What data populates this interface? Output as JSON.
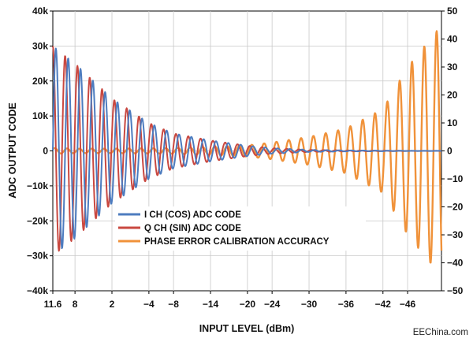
{
  "chart_data": {
    "type": "line",
    "title": "",
    "xlabel": "INPUT LEVEL (dBm)",
    "ylabel": "ADC OUTPUT CODE",
    "y2label": "",
    "x_ticks": [
      "11.6",
      "8",
      "2",
      "−4",
      "−8",
      "−14",
      "−20",
      "−24",
      "−30",
      "−36",
      "−42",
      "−46"
    ],
    "x_tick_values": [
      11.6,
      8,
      2,
      -4,
      -8,
      -14,
      -20,
      -24,
      -30,
      -36,
      -42,
      -46
    ],
    "xlim": [
      11.6,
      -51.5
    ],
    "y_ticks": [
      "40k",
      "30k",
      "20k",
      "10k",
      "0",
      "−10k",
      "−20k",
      "−30k",
      "−40k"
    ],
    "y_tick_values": [
      40000,
      30000,
      20000,
      10000,
      0,
      -10000,
      -20000,
      -30000,
      -40000
    ],
    "ylim": [
      -40000,
      40000
    ],
    "y2_ticks": [
      "50",
      "40",
      "30",
      "20",
      "10",
      "0",
      "−10",
      "−20",
      "−30",
      "−40",
      "−50"
    ],
    "y2_tick_values": [
      50,
      40,
      30,
      20,
      10,
      0,
      -10,
      -20,
      -30,
      -40,
      -50
    ],
    "y2lim": [
      -50,
      50
    ],
    "grid": true,
    "legend_position": "bottom-left",
    "series": [
      {
        "name": "I CH (COS) ADC CODE",
        "color": "#4d7cbf",
        "axis": "left",
        "envelope_x": [
          11.6,
          8,
          2,
          -4,
          -8,
          -14,
          -20,
          -24,
          -30,
          -36,
          -42,
          -46,
          -51.5
        ],
        "envelope_y": [
          30000,
          25000,
          15000,
          8000,
          5000,
          3000,
          1500,
          800,
          300,
          150,
          80,
          40,
          20
        ],
        "cycles_per_dB": 0.5,
        "phase": 0
      },
      {
        "name": "Q CH (SIN) ADC CODE",
        "color": "#c94840",
        "axis": "left",
        "envelope_x": [
          11.6,
          8,
          2,
          -4,
          -8,
          -14,
          -20,
          -24,
          -30,
          -36,
          -42,
          -46,
          -51.5
        ],
        "envelope_y": [
          30000,
          25000,
          15000,
          8000,
          5000,
          3000,
          1500,
          800,
          300,
          150,
          80,
          40,
          20
        ],
        "cycles_per_dB": 0.5,
        "phase": 1.5708
      },
      {
        "name": "PHASE ERROR CALIBRATION ACCURACY",
        "color": "#f0923a",
        "axis": "right",
        "envelope_x": [
          11.6,
          8,
          2,
          -4,
          -8,
          -14,
          -20,
          -24,
          -30,
          -36,
          -42,
          -46,
          -51.5
        ],
        "envelope_y": [
          1,
          0.8,
          0.8,
          0.9,
          1,
          1.5,
          2,
          3,
          5,
          8,
          15,
          30,
          45
        ],
        "cycles_per_dB": 0.5,
        "phase": 0.6
      }
    ]
  },
  "watermark": "EEChina.com"
}
